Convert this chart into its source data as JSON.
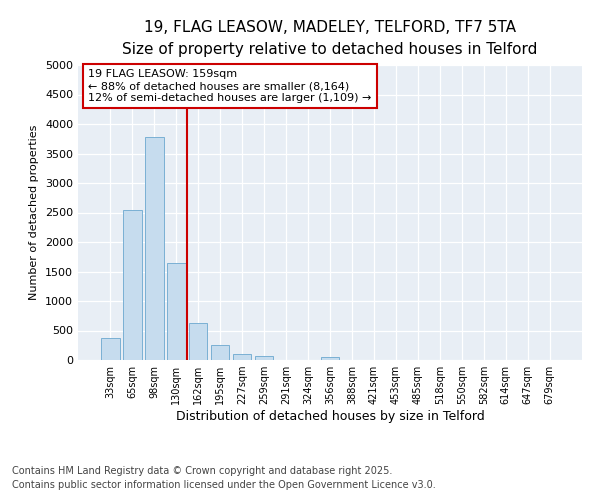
{
  "title_line1": "19, FLAG LEASOW, MADELEY, TELFORD, TF7 5TA",
  "title_line2": "Size of property relative to detached houses in Telford",
  "xlabel": "Distribution of detached houses by size in Telford",
  "ylabel": "Number of detached properties",
  "categories": [
    "33sqm",
    "65sqm",
    "98sqm",
    "130sqm",
    "162sqm",
    "195sqm",
    "227sqm",
    "259sqm",
    "291sqm",
    "324sqm",
    "356sqm",
    "388sqm",
    "421sqm",
    "453sqm",
    "485sqm",
    "518sqm",
    "550sqm",
    "582sqm",
    "614sqm",
    "647sqm",
    "679sqm"
  ],
  "values": [
    380,
    2550,
    3780,
    1650,
    620,
    250,
    110,
    70,
    0,
    0,
    55,
    0,
    0,
    0,
    0,
    0,
    0,
    0,
    0,
    0,
    0
  ],
  "bar_color": "#c6dcee",
  "bar_edge_color": "#7ab0d4",
  "vline_x_idx": 4,
  "vline_color": "#cc0000",
  "annotation_text": "19 FLAG LEASOW: 159sqm\n← 88% of detached houses are smaller (8,164)\n12% of semi-detached houses are larger (1,109) →",
  "annotation_box_color": "#ffffff",
  "annotation_box_edge": "#cc0000",
  "ylim": [
    0,
    5000
  ],
  "yticks": [
    0,
    500,
    1000,
    1500,
    2000,
    2500,
    3000,
    3500,
    4000,
    4500,
    5000
  ],
  "footer_line1": "Contains HM Land Registry data © Crown copyright and database right 2025.",
  "footer_line2": "Contains public sector information licensed under the Open Government Licence v3.0.",
  "bg_color": "#ffffff",
  "plot_bg_color": "#e8eef5",
  "title_fontsize": 12,
  "subtitle_fontsize": 10,
  "footer_fontsize": 7
}
